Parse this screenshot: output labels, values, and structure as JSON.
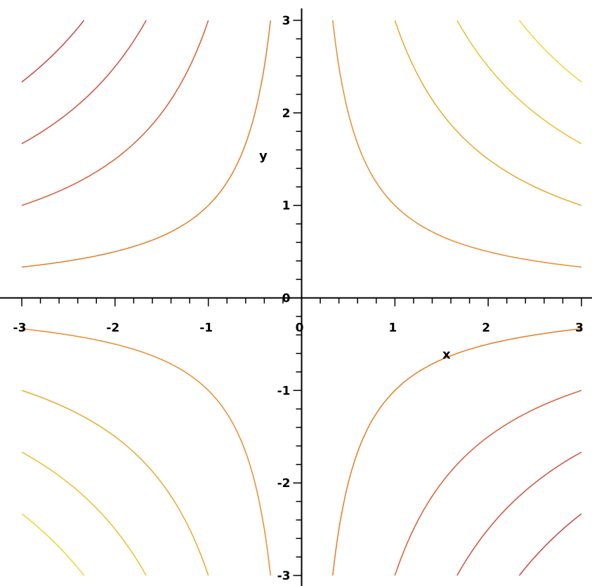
{
  "chart_data": {
    "type": "contour",
    "function": "x*y",
    "xlabel": "x",
    "ylabel": "y",
    "xlim": [
      -3,
      3
    ],
    "ylim": [
      -3,
      3
    ],
    "x_ticks": [
      -3,
      -2,
      -1,
      0,
      1,
      2,
      3
    ],
    "y_ticks": [
      -3,
      -2,
      -1,
      0,
      1,
      2,
      3
    ],
    "x_tick_labels": [
      "-3",
      "-2",
      "-1",
      "0",
      "1",
      "2",
      "3"
    ],
    "y_tick_labels": [
      "-3",
      "-2",
      "-1",
      "0",
      "1",
      "2",
      "3"
    ],
    "grid": false,
    "contours": [
      {
        "level": -7,
        "color": "#c8504f"
      },
      {
        "level": -5,
        "color": "#cf5a4a"
      },
      {
        "level": -3,
        "color": "#d8663f"
      },
      {
        "level": -1,
        "color": "#e38431"
      },
      {
        "level": 1,
        "color": "#e8923a"
      },
      {
        "level": 3,
        "color": "#e7ad37"
      },
      {
        "level": 5,
        "color": "#e8c43a"
      },
      {
        "level": 7,
        "color": "#ecd83f"
      }
    ]
  }
}
